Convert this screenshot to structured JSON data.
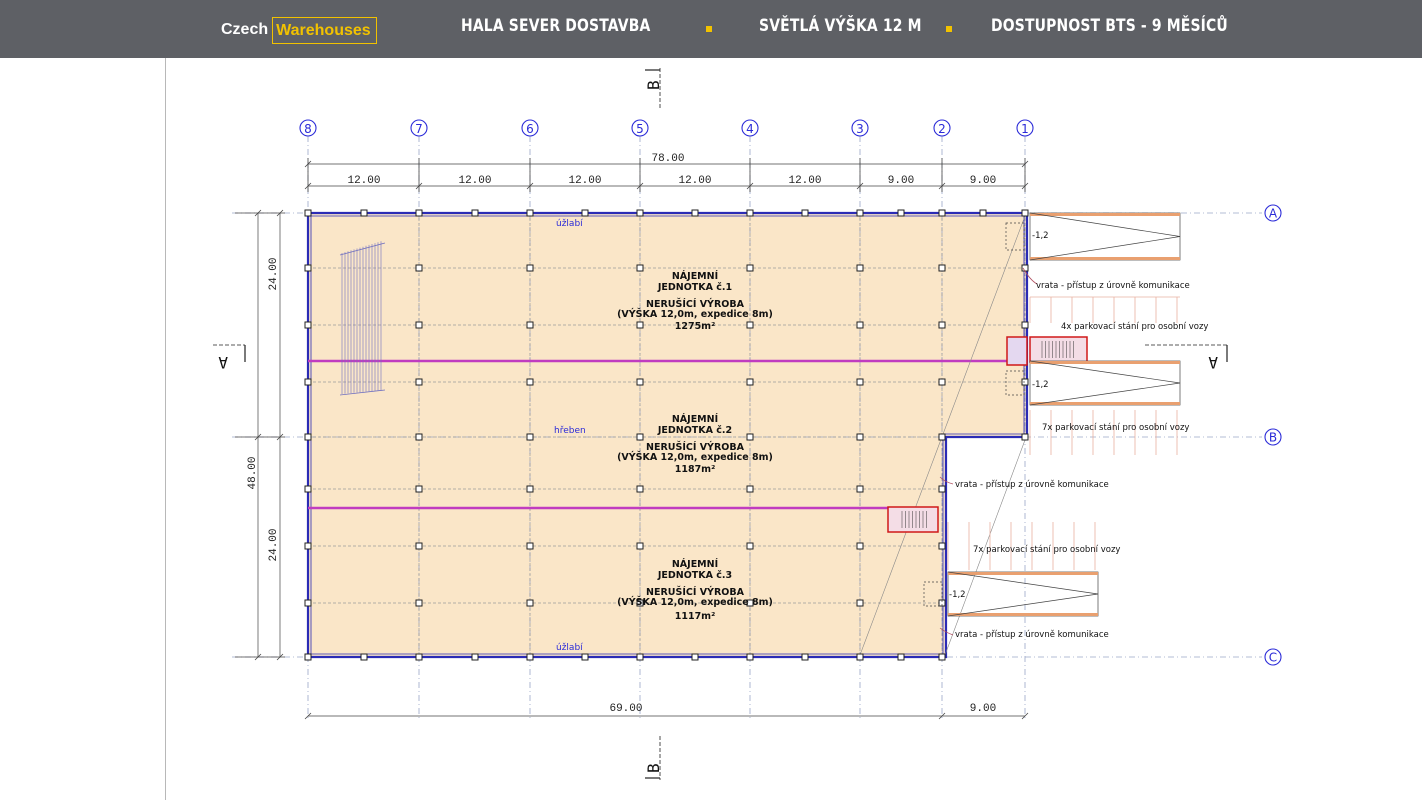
{
  "brand": {
    "czech": "Czech",
    "warehouses": "Warehouses"
  },
  "header": {
    "item1": "HALA SEVER DOSTAVBA",
    "item2": "SVĚTLÁ VÝŠKA 12 M",
    "item3": "DOSTUPNOST BTS - 9 MĚSÍCŮ"
  },
  "plan": {
    "axes_numbers": [
      "8",
      "7",
      "6",
      "5",
      "4",
      "3",
      "2",
      "1"
    ],
    "axes_letters": [
      "A",
      "B",
      "C"
    ],
    "total_top": "78.00",
    "spans_top": [
      "12.00",
      "12.00",
      "12.00",
      "12.00",
      "12.00",
      "9.00",
      "9.00"
    ],
    "span_bottom_left": "69.00",
    "span_bottom_right": "9.00",
    "span_left_total": "48.00",
    "span_left_upper": "24.00",
    "span_left_lower": "24.00",
    "section_a": "A",
    "section_b": "B",
    "units": [
      {
        "l1": "NÁJEMNÍ",
        "l2": "JEDNOTKA č.1",
        "l3": "NERUŠÍCÍ VÝROBA",
        "l4": "(VÝŠKA 12,0m, expedice 8m)",
        "area": "1275m²"
      },
      {
        "l1": "NÁJEMNÍ",
        "l2": "JEDNOTKA č.2",
        "l3": "NERUŠÍCÍ VÝROBA",
        "l4": "(VÝŠKA 12,0m, expedice 8m)",
        "area": "1187m²"
      },
      {
        "l1": "NÁJEMNÍ",
        "l2": "JEDNOTKA č.3",
        "l3": "NERUŠÍCÍ VÝROBA",
        "l4": "(VÝŠKA 12,0m, expedice 8m)",
        "area": "1117m²"
      }
    ],
    "uzlabi": "úžlabí",
    "hreben": "hřeben",
    "gate_note": "vrata - přístup z úrovně komunikace",
    "parking_4": "4x parkovací stání pro osobní vozy",
    "parking_7": "7x parkovací stání pro osobní vozy",
    "level": "-1,2"
  },
  "colors": {
    "header_bg": "#5e6065",
    "accent": "#f2c200",
    "hall_fill": "#fae6c8",
    "wall": "#2b2bb5",
    "ridge": "#c03cc0",
    "axis_blue": "#2b2bd8"
  }
}
